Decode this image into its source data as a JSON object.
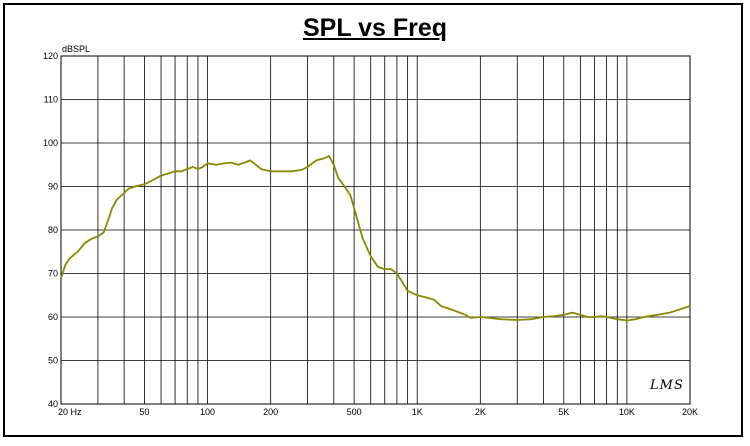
{
  "chart_data": {
    "type": "line",
    "title": "SPL vs Freq",
    "ylabel": "dBSPL",
    "xlabel": "",
    "x_scale": "log",
    "xlim": [
      20,
      20000
    ],
    "ylim": [
      40,
      120
    ],
    "y_ticks": [
      40,
      50,
      60,
      70,
      80,
      90,
      100,
      110,
      120
    ],
    "x_tick_labels": [
      {
        "value": 20,
        "label": "20  Hz"
      },
      {
        "value": 50,
        "label": "50"
      },
      {
        "value": 100,
        "label": "100"
      },
      {
        "value": 200,
        "label": "200"
      },
      {
        "value": 500,
        "label": "500"
      },
      {
        "value": 1000,
        "label": "1K"
      },
      {
        "value": 2000,
        "label": "2K"
      },
      {
        "value": 5000,
        "label": "5K"
      },
      {
        "value": 10000,
        "label": "10K"
      },
      {
        "value": 20000,
        "label": "20K"
      }
    ],
    "grid": true,
    "series": [
      {
        "color": "#8a8a00",
        "x": [
          20,
          21,
          22,
          24,
          26,
          28,
          30,
          32,
          34,
          35,
          37,
          40,
          42,
          45,
          50,
          55,
          60,
          65,
          70,
          75,
          80,
          85,
          90,
          95,
          100,
          110,
          120,
          130,
          140,
          150,
          160,
          170,
          180,
          200,
          220,
          250,
          280,
          300,
          330,
          360,
          380,
          400,
          420,
          450,
          480,
          500,
          550,
          600,
          650,
          700,
          750,
          800,
          850,
          900,
          1000,
          1100,
          1200,
          1300,
          1500,
          1700,
          1800,
          2000,
          2200,
          2500,
          3000,
          3500,
          4000,
          4500,
          5000,
          5500,
          6000,
          6500,
          7000,
          7500,
          8000,
          9000,
          10000,
          11000,
          12000,
          14000,
          16000,
          18000,
          20000
        ],
        "y": [
          69,
          72,
          73.5,
          75,
          77,
          78,
          78.5,
          79.5,
          83,
          85,
          87,
          88.5,
          89.5,
          90,
          90.5,
          91.5,
          92.5,
          93,
          93.5,
          93.5,
          94,
          94.5,
          94,
          94.5,
          95.3,
          95,
          95.3,
          95.5,
          95,
          95.5,
          96,
          95,
          94,
          93.5,
          93.5,
          93.5,
          93.8,
          94.5,
          96,
          96.5,
          97,
          95,
          92,
          90,
          88,
          85,
          78,
          74,
          71.5,
          71,
          71,
          70,
          68,
          66,
          65,
          64.5,
          64,
          62.5,
          61.5,
          60.5,
          59.8,
          60,
          59.8,
          59.5,
          59.3,
          59.5,
          60,
          60.2,
          60.5,
          61,
          60.5,
          60,
          60,
          60.2,
          60,
          59.5,
          59.2,
          59.5,
          60,
          60.5,
          61,
          61.8,
          62.5
        ]
      }
    ]
  },
  "watermark": "LMS"
}
